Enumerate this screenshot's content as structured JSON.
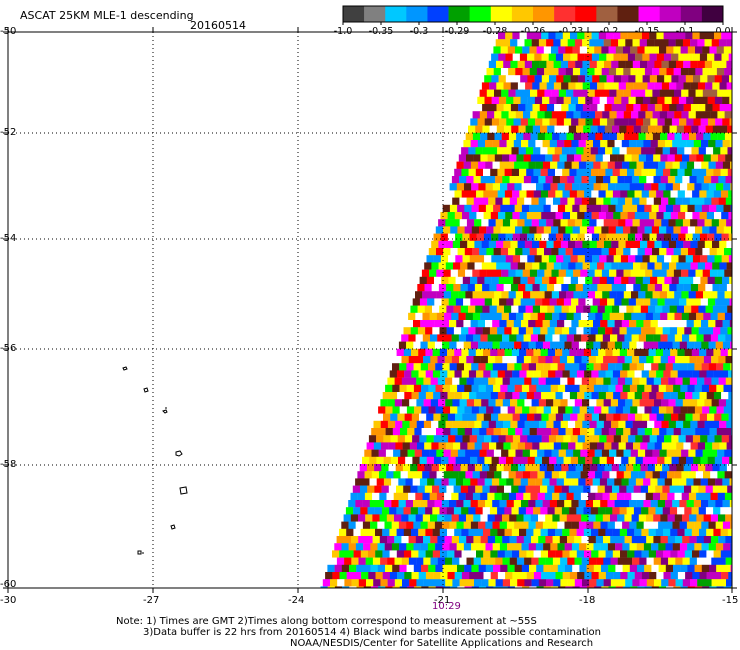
{
  "header": {
    "title": "ASCAT 25KM MLE-1 descending",
    "date": "20160514"
  },
  "legend": {
    "labels": [
      "-1.0",
      "-0.35",
      "-0.3",
      "-0.29",
      "-0.28",
      "-0.26",
      "-0.23",
      "-0.2",
      "-0.15",
      "-0.1",
      "0.0"
    ],
    "colors": [
      "#404040",
      "#808080",
      "#00c8ff",
      "#0096ff",
      "#0040ff",
      "#00a000",
      "#00ff00",
      "#ffff00",
      "#ffc800",
      "#ff9600",
      "#ff3030",
      "#ff0000",
      "#a06040",
      "#602010",
      "#ff00ff",
      "#c000c0",
      "#800080",
      "#400040"
    ]
  },
  "axes": {
    "lat_labels": [
      "-50",
      "-52",
      "-54",
      "-56",
      "-58",
      "-60"
    ],
    "lon_labels": [
      "-30",
      "-27",
      "-24",
      "-21",
      "-18",
      "-15"
    ]
  },
  "time_label": "10:29",
  "notes": {
    "line1": "Note: 1) Times are GMT 2)Times along bottom correspond to measurement at ~55S",
    "line2": "3)Data buffer is 22 hrs from 20160514 4) Black wind barbs indicate possible contamination",
    "line3": "NOAA/NESDIS/Center for Satellite Applications and Research"
  }
}
